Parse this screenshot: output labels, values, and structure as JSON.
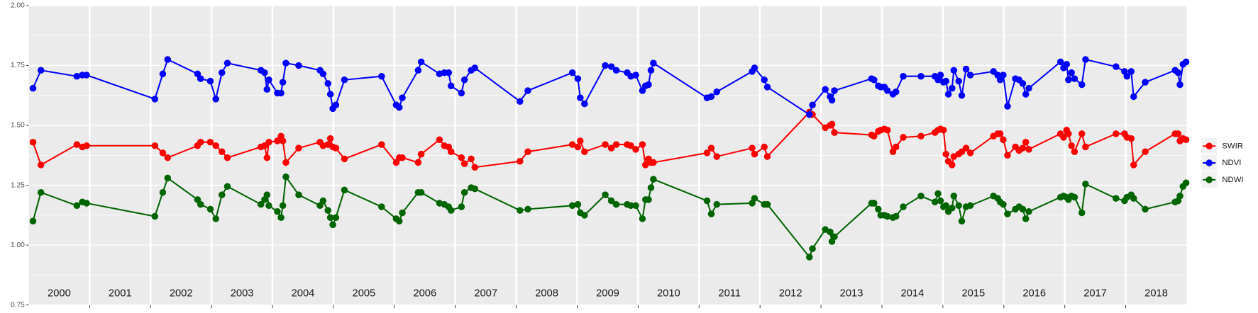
{
  "chart_data": {
    "type": "line",
    "year_labels": [
      "2000",
      "2001",
      "2002",
      "2003",
      "2004",
      "2005",
      "2006",
      "2007",
      "2008",
      "2009",
      "2010",
      "2011",
      "2012",
      "2013",
      "2014",
      "2015",
      "2016",
      "2017",
      "2018"
    ],
    "xlim": [
      2000,
      2019
    ],
    "xticks": [
      2001,
      2002,
      2003,
      2004,
      2005,
      2006,
      2007,
      2008,
      2009,
      2010,
      2011,
      2012,
      2013,
      2014,
      2015,
      2016,
      2017,
      2018
    ],
    "ylim": [
      0.75,
      2.0
    ],
    "yticks": [
      {
        "value": 2.0,
        "label": "2.00"
      },
      1.75,
      {
        "value": 1.5,
        "label": "1.50"
      },
      1.25,
      {
        "value": 1.0,
        "label": "1.00"
      },
      0.75
    ],
    "grid": true,
    "legend": "right",
    "x": [
      2000.07,
      2000.2,
      2000.79,
      2000.88,
      2000.95,
      2002.07,
      2002.2,
      2002.28,
      2002.77,
      2002.82,
      2002.98,
      2003.07,
      2003.17,
      2003.26,
      2003.81,
      2003.87,
      2003.91,
      2003.94,
      2004.08,
      2004.14,
      2004.17,
      2004.22,
      2004.43,
      2004.78,
      2004.83,
      2004.91,
      2004.95,
      2004.99,
      2005.04,
      2005.18,
      2005.79,
      2006.03,
      2006.08,
      2006.13,
      2006.39,
      2006.44,
      2006.74,
      2006.82,
      2006.89,
      2006.93,
      2007.1,
      2007.15,
      2007.26,
      2007.32,
      2008.06,
      2008.19,
      2008.92,
      2009.01,
      2009.05,
      2009.12,
      2009.46,
      2009.56,
      2009.64,
      2009.82,
      2009.88,
      2009.96,
      2010.07,
      2010.12,
      2010.17,
      2010.21,
      2010.25,
      2011.13,
      2011.2,
      2011.29,
      2011.87,
      2011.91,
      2012.07,
      2012.12,
      2012.81,
      2012.86,
      2013.07,
      2013.15,
      2013.18,
      2013.22,
      2013.83,
      2013.87,
      2013.94,
      2013.98,
      2014.04,
      2014.09,
      2014.18,
      2014.23,
      2014.35,
      2014.64,
      2014.87,
      2014.92,
      2014.96,
      2015.01,
      2015.05,
      2015.09,
      2015.15,
      2015.18,
      2015.26,
      2015.31,
      2015.38,
      2015.45,
      2015.83,
      2015.9,
      2015.94,
      2015.99,
      2016.06,
      2016.19,
      2016.25,
      2016.31,
      2016.36,
      2016.41,
      2016.93,
      2016.98,
      2017.03,
      2017.06,
      2017.11,
      2017.16,
      2017.28,
      2017.34,
      2017.84,
      2017.98,
      2018.02,
      2018.09,
      2018.13,
      2018.32,
      2018.81,
      2018.86,
      2018.89,
      2018.94,
      2018.99
    ],
    "series": [
      {
        "name": "SWIR",
        "color": "#ff0000",
        "values": [
          1.43,
          1.335,
          1.42,
          1.41,
          1.415,
          1.415,
          1.385,
          1.365,
          1.415,
          1.43,
          1.43,
          1.415,
          1.39,
          1.365,
          1.41,
          1.415,
          1.365,
          1.43,
          1.435,
          1.455,
          1.435,
          1.345,
          1.405,
          1.43,
          1.415,
          1.42,
          1.445,
          1.41,
          1.405,
          1.36,
          1.42,
          1.345,
          1.365,
          1.365,
          1.345,
          1.38,
          1.44,
          1.415,
          1.41,
          1.39,
          1.365,
          1.34,
          1.36,
          1.325,
          1.35,
          1.39,
          1.42,
          1.41,
          1.435,
          1.39,
          1.42,
          1.405,
          1.42,
          1.42,
          1.415,
          1.4,
          1.42,
          1.335,
          1.36,
          1.345,
          1.345,
          1.385,
          1.405,
          1.37,
          1.405,
          1.38,
          1.41,
          1.37,
          1.555,
          1.545,
          1.49,
          1.5,
          1.505,
          1.47,
          1.46,
          1.455,
          1.475,
          1.48,
          1.485,
          1.48,
          1.39,
          1.41,
          1.45,
          1.455,
          1.47,
          1.48,
          1.485,
          1.48,
          1.38,
          1.35,
          1.335,
          1.37,
          1.38,
          1.39,
          1.405,
          1.385,
          1.455,
          1.465,
          1.465,
          1.44,
          1.375,
          1.41,
          1.395,
          1.405,
          1.43,
          1.4,
          1.465,
          1.45,
          1.48,
          1.465,
          1.415,
          1.39,
          1.465,
          1.41,
          1.465,
          1.465,
          1.45,
          1.445,
          1.335,
          1.39,
          1.465,
          1.465,
          1.435,
          1.445,
          1.44
        ]
      },
      {
        "name": "NDVI",
        "color": "#0000ff",
        "values": [
          1.655,
          1.73,
          1.705,
          1.71,
          1.71,
          1.61,
          1.715,
          1.775,
          1.715,
          1.695,
          1.685,
          1.61,
          1.72,
          1.76,
          1.73,
          1.72,
          1.65,
          1.69,
          1.635,
          1.635,
          1.68,
          1.76,
          1.75,
          1.73,
          1.715,
          1.675,
          1.63,
          1.57,
          1.585,
          1.69,
          1.705,
          1.585,
          1.575,
          1.615,
          1.73,
          1.765,
          1.715,
          1.72,
          1.72,
          1.665,
          1.635,
          1.69,
          1.73,
          1.74,
          1.6,
          1.645,
          1.72,
          1.695,
          1.615,
          1.59,
          1.75,
          1.745,
          1.73,
          1.72,
          1.705,
          1.71,
          1.645,
          1.665,
          1.67,
          1.73,
          1.76,
          1.615,
          1.62,
          1.64,
          1.725,
          1.74,
          1.69,
          1.66,
          1.545,
          1.585,
          1.65,
          1.62,
          1.605,
          1.645,
          1.695,
          1.69,
          1.665,
          1.66,
          1.66,
          1.645,
          1.63,
          1.64,
          1.705,
          1.705,
          1.705,
          1.69,
          1.71,
          1.68,
          1.685,
          1.63,
          1.655,
          1.73,
          1.685,
          1.625,
          1.735,
          1.71,
          1.725,
          1.71,
          1.69,
          1.71,
          1.58,
          1.695,
          1.69,
          1.675,
          1.63,
          1.655,
          1.765,
          1.74,
          1.755,
          1.69,
          1.72,
          1.695,
          1.67,
          1.775,
          1.745,
          1.725,
          1.705,
          1.725,
          1.62,
          1.68,
          1.73,
          1.72,
          1.67,
          1.755,
          1.765
        ]
      },
      {
        "name": "NDWI",
        "color": "#006400",
        "values": [
          1.1,
          1.22,
          1.165,
          1.18,
          1.175,
          1.12,
          1.22,
          1.28,
          1.19,
          1.17,
          1.15,
          1.11,
          1.21,
          1.245,
          1.17,
          1.19,
          1.21,
          1.165,
          1.14,
          1.115,
          1.165,
          1.285,
          1.21,
          1.165,
          1.185,
          1.145,
          1.115,
          1.085,
          1.115,
          1.23,
          1.16,
          1.11,
          1.1,
          1.135,
          1.22,
          1.22,
          1.175,
          1.17,
          1.16,
          1.145,
          1.16,
          1.22,
          1.24,
          1.235,
          1.145,
          1.15,
          1.165,
          1.17,
          1.135,
          1.125,
          1.21,
          1.185,
          1.17,
          1.17,
          1.165,
          1.165,
          1.11,
          1.19,
          1.19,
          1.24,
          1.275,
          1.185,
          1.13,
          1.17,
          1.175,
          1.195,
          1.17,
          1.17,
          0.95,
          0.985,
          1.065,
          1.055,
          1.015,
          1.035,
          1.175,
          1.175,
          1.15,
          1.125,
          1.125,
          1.12,
          1.115,
          1.12,
          1.16,
          1.205,
          1.18,
          1.215,
          1.185,
          1.16,
          1.165,
          1.14,
          1.155,
          1.205,
          1.165,
          1.1,
          1.16,
          1.165,
          1.205,
          1.195,
          1.18,
          1.17,
          1.13,
          1.15,
          1.16,
          1.15,
          1.11,
          1.14,
          1.2,
          1.205,
          1.2,
          1.19,
          1.205,
          1.2,
          1.135,
          1.255,
          1.195,
          1.185,
          1.2,
          1.21,
          1.195,
          1.15,
          1.18,
          1.185,
          1.205,
          1.245,
          1.26
        ]
      }
    ]
  }
}
